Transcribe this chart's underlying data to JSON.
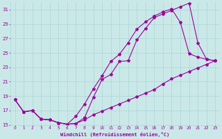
{
  "xlabel": "Windchill (Refroidissement éolien,°C)",
  "bg_color": "#cbe8e8",
  "line_color": "#990099",
  "grid_color": "#aad4d4",
  "xlim": [
    -0.5,
    23.5
  ],
  "ylim": [
    15,
    32
  ],
  "xticks": [
    0,
    1,
    2,
    3,
    4,
    5,
    6,
    7,
    8,
    9,
    10,
    11,
    12,
    13,
    14,
    15,
    16,
    17,
    18,
    19,
    20,
    21,
    22,
    23
  ],
  "yticks": [
    15,
    17,
    19,
    21,
    23,
    25,
    27,
    29,
    31
  ],
  "line1_x": [
    0,
    1,
    2,
    3,
    4,
    5,
    6,
    7,
    8,
    9,
    10,
    11,
    12,
    13,
    14,
    15,
    16,
    17,
    18,
    19,
    20,
    21,
    22,
    23
  ],
  "line1_y": [
    18.5,
    16.8,
    17.0,
    15.8,
    15.7,
    15.3,
    15.1,
    15.2,
    16.0,
    18.8,
    21.3,
    22.0,
    23.8,
    23.9,
    26.8,
    28.4,
    29.9,
    30.4,
    30.9,
    31.4,
    31.9,
    26.4,
    24.1,
    23.9
  ],
  "line2_x": [
    0,
    1,
    2,
    3,
    4,
    5,
    6,
    7,
    8,
    9,
    10,
    11,
    12,
    13,
    14,
    15,
    16,
    17,
    18,
    19,
    20,
    21,
    22,
    23
  ],
  "line2_y": [
    18.5,
    16.8,
    17.0,
    15.8,
    15.7,
    15.3,
    15.1,
    16.2,
    17.9,
    20.0,
    21.8,
    23.8,
    24.8,
    26.4,
    28.3,
    29.3,
    30.1,
    30.7,
    31.1,
    29.2,
    24.9,
    24.4,
    24.1,
    23.9
  ],
  "line3_x": [
    0,
    1,
    2,
    3,
    4,
    5,
    6,
    7,
    8,
    9,
    10,
    11,
    12,
    13,
    14,
    15,
    16,
    17,
    18,
    19,
    20,
    21,
    22,
    23
  ],
  "line3_y": [
    18.5,
    16.8,
    17.0,
    15.8,
    15.7,
    15.3,
    15.1,
    15.2,
    15.7,
    16.4,
    16.9,
    17.4,
    17.9,
    18.4,
    18.9,
    19.4,
    19.9,
    20.7,
    21.4,
    21.9,
    22.4,
    22.9,
    23.4,
    23.9
  ]
}
